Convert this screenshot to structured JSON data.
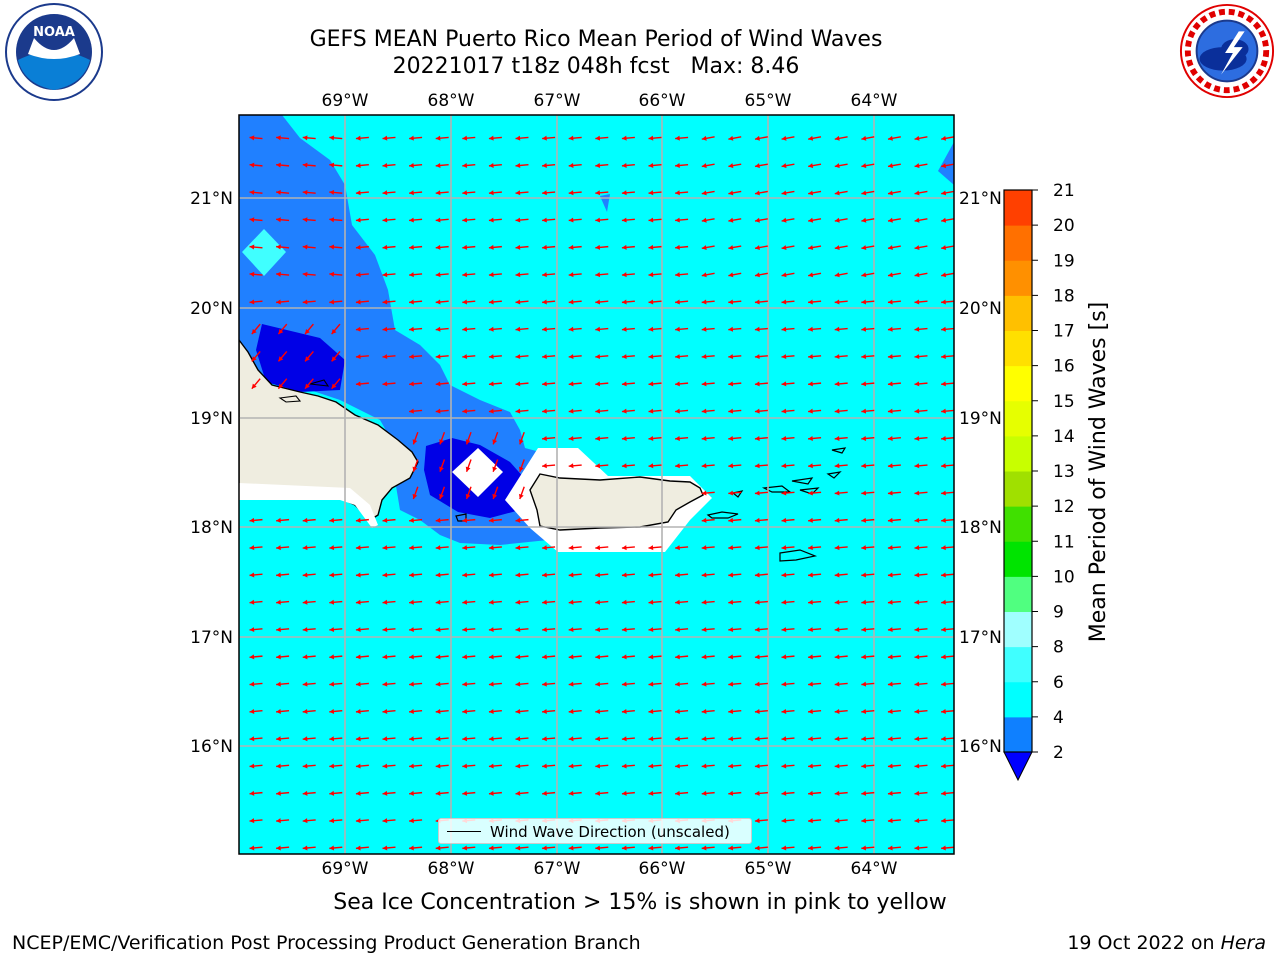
{
  "title": {
    "line1": "GEFS MEAN Puerto Rico Mean Period of Wind Waves",
    "line2": "20221017 t18z 048h fcst   Max: 8.46"
  },
  "map": {
    "lon_labels": [
      "69°W",
      "68°W",
      "67°W",
      "66°W",
      "65°W",
      "64°W"
    ],
    "lat_labels": [
      "21°N",
      "20°N",
      "19°N",
      "18°N",
      "17°N",
      "16°N"
    ],
    "field_colors": {
      "ocean_4_6": "#00ffff",
      "band_2_4": "#2080ff",
      "band_lt2": "#0000e6",
      "land": "#efede0",
      "arrows": "#ff0000"
    }
  },
  "legend": {
    "label": "Wind Wave Direction (unscaled)"
  },
  "colorbar": {
    "label": "Mean Period of Wind Waves [s]",
    "ticks": [
      "2",
      "4",
      "6",
      "8",
      "9",
      "10",
      "11",
      "12",
      "13",
      "14",
      "15",
      "16",
      "17",
      "18",
      "19",
      "20",
      "21"
    ],
    "colors": [
      "#0f80ff",
      "#00ffff",
      "#40ffff",
      "#a0ffff",
      "#50ff80",
      "#00e400",
      "#40e000",
      "#a0e000",
      "#c8ff00",
      "#e6ff00",
      "#ffff00",
      "#ffe000",
      "#ffc000",
      "#ff9000",
      "#ff7000",
      "#ff4000",
      "#ff1000",
      "#ff0000"
    ],
    "under_color": "#0000ff"
  },
  "footnote": "Sea Ice Concentration > 15% is shown in pink to yellow",
  "footer": {
    "left": "NCEP/EMC/Verification Post Processing Product Generation Branch",
    "right_prefix": "19 Oct 2022 on ",
    "right_machine": "Hera"
  },
  "logos": {
    "left": "NOAA",
    "right_ring": "NATIONAL WEATHER SERVICE"
  }
}
